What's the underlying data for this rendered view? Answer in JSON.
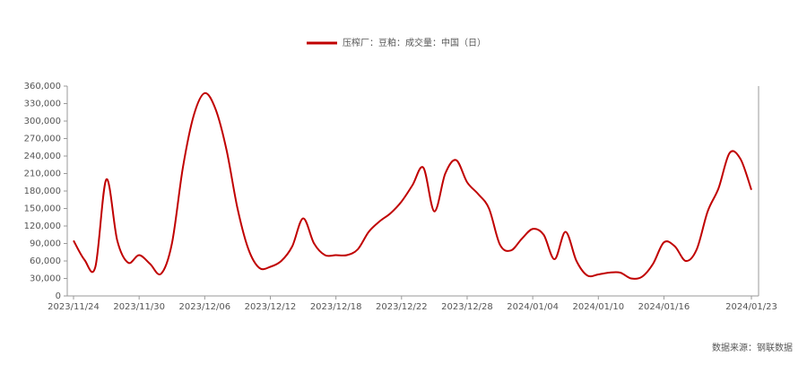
{
  "chart_data": {
    "type": "line",
    "series": [
      {
        "name": "压榨厂：豆粕：成交量：中国（日）",
        "color": "#c00000",
        "values": [
          95000,
          62000,
          50000,
          200000,
          95000,
          57000,
          70000,
          55000,
          38000,
          90000,
          220000,
          310000,
          348000,
          320000,
          250000,
          150000,
          80000,
          48000,
          50000,
          60000,
          85000,
          133000,
          90000,
          70000,
          70000,
          70000,
          80000,
          110000,
          128000,
          142000,
          162000,
          190000,
          220000,
          145000,
          210000,
          233000,
          195000,
          175000,
          150000,
          88000,
          78000,
          98000,
          115000,
          105000,
          63000,
          110000,
          60000,
          35000,
          37000,
          40000,
          40000,
          30000,
          33000,
          55000,
          92000,
          85000,
          60000,
          80000,
          145000,
          185000,
          245000,
          235000,
          182000
        ]
      }
    ],
    "categories": [
      "2023/11/24",
      null,
      null,
      null,
      null,
      null,
      "2023/11/30",
      null,
      null,
      null,
      null,
      null,
      "2023/12/06",
      null,
      null,
      null,
      null,
      null,
      "2023/12/12",
      null,
      null,
      null,
      null,
      null,
      "2023/12/18",
      null,
      null,
      null,
      null,
      null,
      "2023/12/22",
      null,
      null,
      null,
      null,
      null,
      "2023/12/28",
      null,
      null,
      null,
      null,
      null,
      "2024/01/04",
      null,
      null,
      null,
      null,
      null,
      "2024/01/10",
      null,
      null,
      null,
      null,
      null,
      "2024/01/16",
      null,
      null,
      null,
      null,
      null,
      null,
      null,
      "2024/01/23"
    ],
    "ylim": [
      0,
      360000
    ],
    "yticks": [
      0,
      {
        "value": 30000,
        "label": "30,000"
      },
      {
        "value": 60000,
        "label": "60,000"
      },
      {
        "value": 90000,
        "label": "90,000"
      },
      {
        "value": 120000,
        "label": "120,000"
      },
      {
        "value": 150000,
        "label": "150,000"
      },
      {
        "value": 180000,
        "label": "180,000"
      },
      {
        "value": 210000,
        "label": "210,000"
      },
      {
        "value": 240000,
        "label": "240,000"
      },
      {
        "value": 270000,
        "label": "270,000"
      },
      {
        "value": 300000,
        "label": "300,000"
      },
      {
        "value": 330000,
        "label": "330,000"
      },
      {
        "value": 360000,
        "label": "360,000"
      }
    ],
    "source": "数据来源：钢联数据"
  }
}
